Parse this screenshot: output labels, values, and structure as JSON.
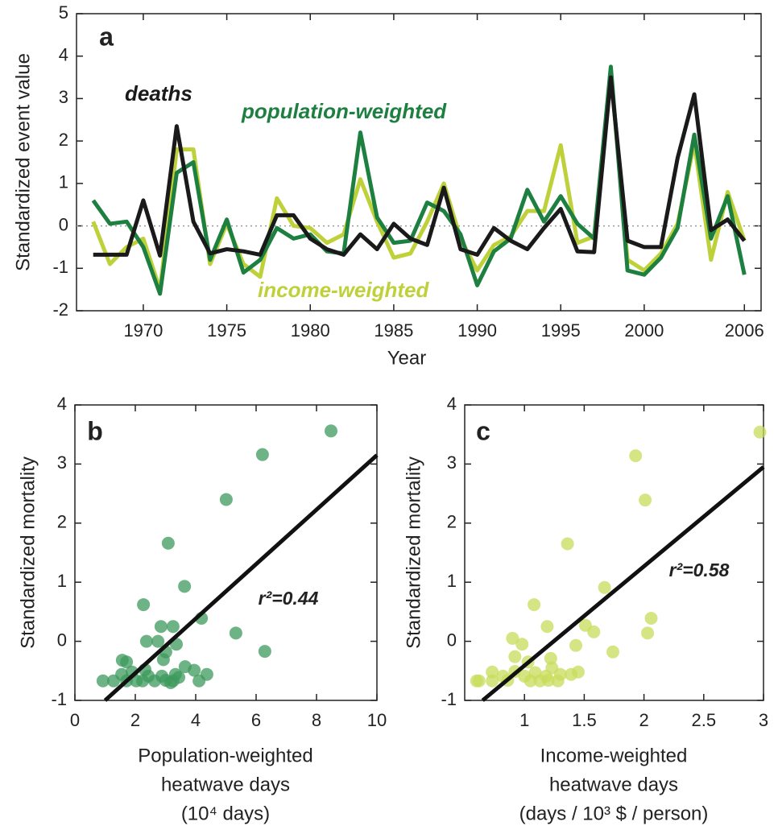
{
  "chart_data": [
    {
      "type": "line",
      "panel": "a",
      "y_label": "Standardized event value",
      "x_label": "Year",
      "x": [
        1967,
        1968,
        1969,
        1970,
        1971,
        1972,
        1973,
        1974,
        1975,
        1976,
        1977,
        1978,
        1979,
        1980,
        1981,
        1982,
        1983,
        1984,
        1985,
        1986,
        1987,
        1988,
        1989,
        1990,
        1991,
        1992,
        1993,
        1994,
        1995,
        1996,
        1997,
        1998,
        1999,
        2000,
        2001,
        2002,
        2003,
        2004,
        2005,
        2006
      ],
      "series": [
        {
          "name": "income-weighted",
          "color": "#bfd13a",
          "values": [
            0.1,
            -0.9,
            -0.5,
            -0.3,
            -1.5,
            1.8,
            1.8,
            -0.9,
            0.05,
            -0.9,
            -1.2,
            0.65,
            0.0,
            -0.05,
            -0.4,
            -0.2,
            1.1,
            0.1,
            -0.75,
            -0.65,
            0.1,
            1.0,
            -0.3,
            -1.05,
            -0.45,
            -0.25,
            0.35,
            0.35,
            1.9,
            -0.4,
            -0.25,
            3.6,
            -0.8,
            -1.05,
            -0.65,
            0.05,
            1.95,
            -0.8,
            0.8,
            -0.35
          ]
        },
        {
          "name": "population-weighted",
          "color": "#1e8040",
          "values": [
            0.6,
            0.05,
            0.1,
            -0.5,
            -1.6,
            1.25,
            1.5,
            -0.8,
            0.15,
            -1.1,
            -0.8,
            -0.05,
            -0.3,
            -0.2,
            -0.6,
            -0.65,
            2.2,
            0.2,
            -0.4,
            -0.35,
            0.55,
            0.35,
            -0.2,
            -1.4,
            -0.6,
            -0.3,
            0.85,
            0.1,
            0.7,
            0.05,
            -0.3,
            3.75,
            -1.05,
            -1.15,
            -0.75,
            -0.05,
            2.15,
            -0.3,
            0.7,
            -1.15
          ]
        },
        {
          "name": "deaths",
          "color": "#1a1a1a",
          "values": [
            -0.68,
            -0.68,
            -0.68,
            0.6,
            -0.7,
            2.35,
            0.1,
            -0.65,
            -0.55,
            -0.6,
            -0.68,
            0.25,
            0.25,
            -0.3,
            -0.55,
            -0.68,
            -0.2,
            -0.55,
            0.05,
            -0.3,
            -0.45,
            0.9,
            -0.55,
            -0.68,
            -0.05,
            -0.35,
            -0.55,
            -0.05,
            0.4,
            -0.6,
            -0.62,
            3.5,
            -0.35,
            -0.5,
            -0.5,
            1.6,
            3.1,
            -0.1,
            0.15,
            -0.35
          ]
        }
      ],
      "reference_line": 0,
      "xlim": [
        1966,
        2007
      ],
      "xticks": [
        1970,
        1975,
        1980,
        1985,
        1990,
        1995,
        2000,
        2006
      ],
      "ylim": [
        -2,
        5
      ],
      "yticks": [
        -2,
        -1,
        0,
        1,
        2,
        3,
        4,
        5
      ]
    },
    {
      "type": "scatter",
      "panel": "b",
      "y_label": "Standardized mortality",
      "x_label": [
        "Population-weighted",
        "heatwave days",
        "(10⁴ days)"
      ],
      "color": "#3d9a5c",
      "x": [
        8.48,
        6.21,
        5.01,
        3.09,
        3.63,
        2.27,
        4.19,
        5.33,
        6.29,
        2.85,
        3.25,
        2.37,
        2.75,
        3.36,
        3.01,
        1.57,
        1.71,
        2.32,
        2.93,
        3.65,
        4.37,
        1.55,
        1.89,
        2.88,
        3.33,
        3.95,
        0.93,
        1.28,
        2.03,
        2.24,
        3.25,
        4.11,
        3.01,
        3.17,
        1.71,
        3.44,
        2.64,
        2.43
      ],
      "values": [
        3.56,
        3.16,
        2.4,
        1.66,
        0.93,
        0.62,
        0.39,
        0.14,
        -0.17,
        0.25,
        0.25,
        0.0,
        0.0,
        -0.05,
        -0.18,
        -0.32,
        -0.35,
        -0.48,
        -0.31,
        -0.43,
        -0.56,
        -0.56,
        -0.52,
        -0.59,
        -0.56,
        -0.49,
        -0.67,
        -0.67,
        -0.67,
        -0.67,
        -0.67,
        -0.67,
        -0.66,
        -0.7,
        -0.67,
        -0.61,
        -0.67,
        -0.59
      ],
      "fit_line": {
        "x": [
          1.0,
          10
        ],
        "values": [
          -1,
          3.15
        ]
      },
      "annotation": "r²=0.44",
      "xlim": [
        0,
        10
      ],
      "xticks": [
        0,
        2,
        4,
        6,
        8,
        10
      ],
      "ylim": [
        -1,
        4
      ],
      "yticks": [
        -1,
        0,
        1,
        2,
        3,
        4
      ]
    },
    {
      "type": "scatter",
      "panel": "c",
      "y_label": "Standardized mortality",
      "x_label": [
        "Income-weighted",
        "heatwave days",
        "(days / 10³ $ / person)"
      ],
      "color": "#c8dc5a",
      "x": [
        2.97,
        1.93,
        2.01,
        1.36,
        1.67,
        1.08,
        2.06,
        2.03,
        1.74,
        1.19,
        1.51,
        1.58,
        0.9,
        0.98,
        1.43,
        1.22,
        0.92,
        1.03,
        1.23,
        1.45,
        1.39,
        0.92,
        1.09,
        1.18,
        1.3,
        0.73,
        0.82,
        0.6,
        0.62,
        1.05,
        1.13,
        1.2,
        1.28,
        0.86,
        1.0,
        0.73
      ],
      "values": [
        3.54,
        3.14,
        2.39,
        1.65,
        0.91,
        0.62,
        0.39,
        0.14,
        -0.18,
        0.25,
        0.27,
        0.16,
        0.05,
        -0.05,
        -0.07,
        -0.29,
        -0.26,
        -0.35,
        -0.45,
        -0.52,
        -0.56,
        -0.51,
        -0.53,
        -0.59,
        -0.56,
        -0.52,
        -0.59,
        -0.67,
        -0.67,
        -0.67,
        -0.67,
        -0.66,
        -0.67,
        -0.66,
        -0.59,
        -0.67
      ],
      "fit_line": {
        "x": [
          0.65,
          3
        ],
        "values": [
          -1,
          2.95
        ]
      },
      "annotation": "r²=0.58",
      "xlim": [
        0.5,
        3
      ],
      "xticks": [
        1,
        1.5,
        2,
        2.5,
        3
      ],
      "ylim": [
        -1,
        4
      ],
      "yticks": [
        -1,
        0,
        1,
        2,
        3,
        4
      ]
    }
  ]
}
